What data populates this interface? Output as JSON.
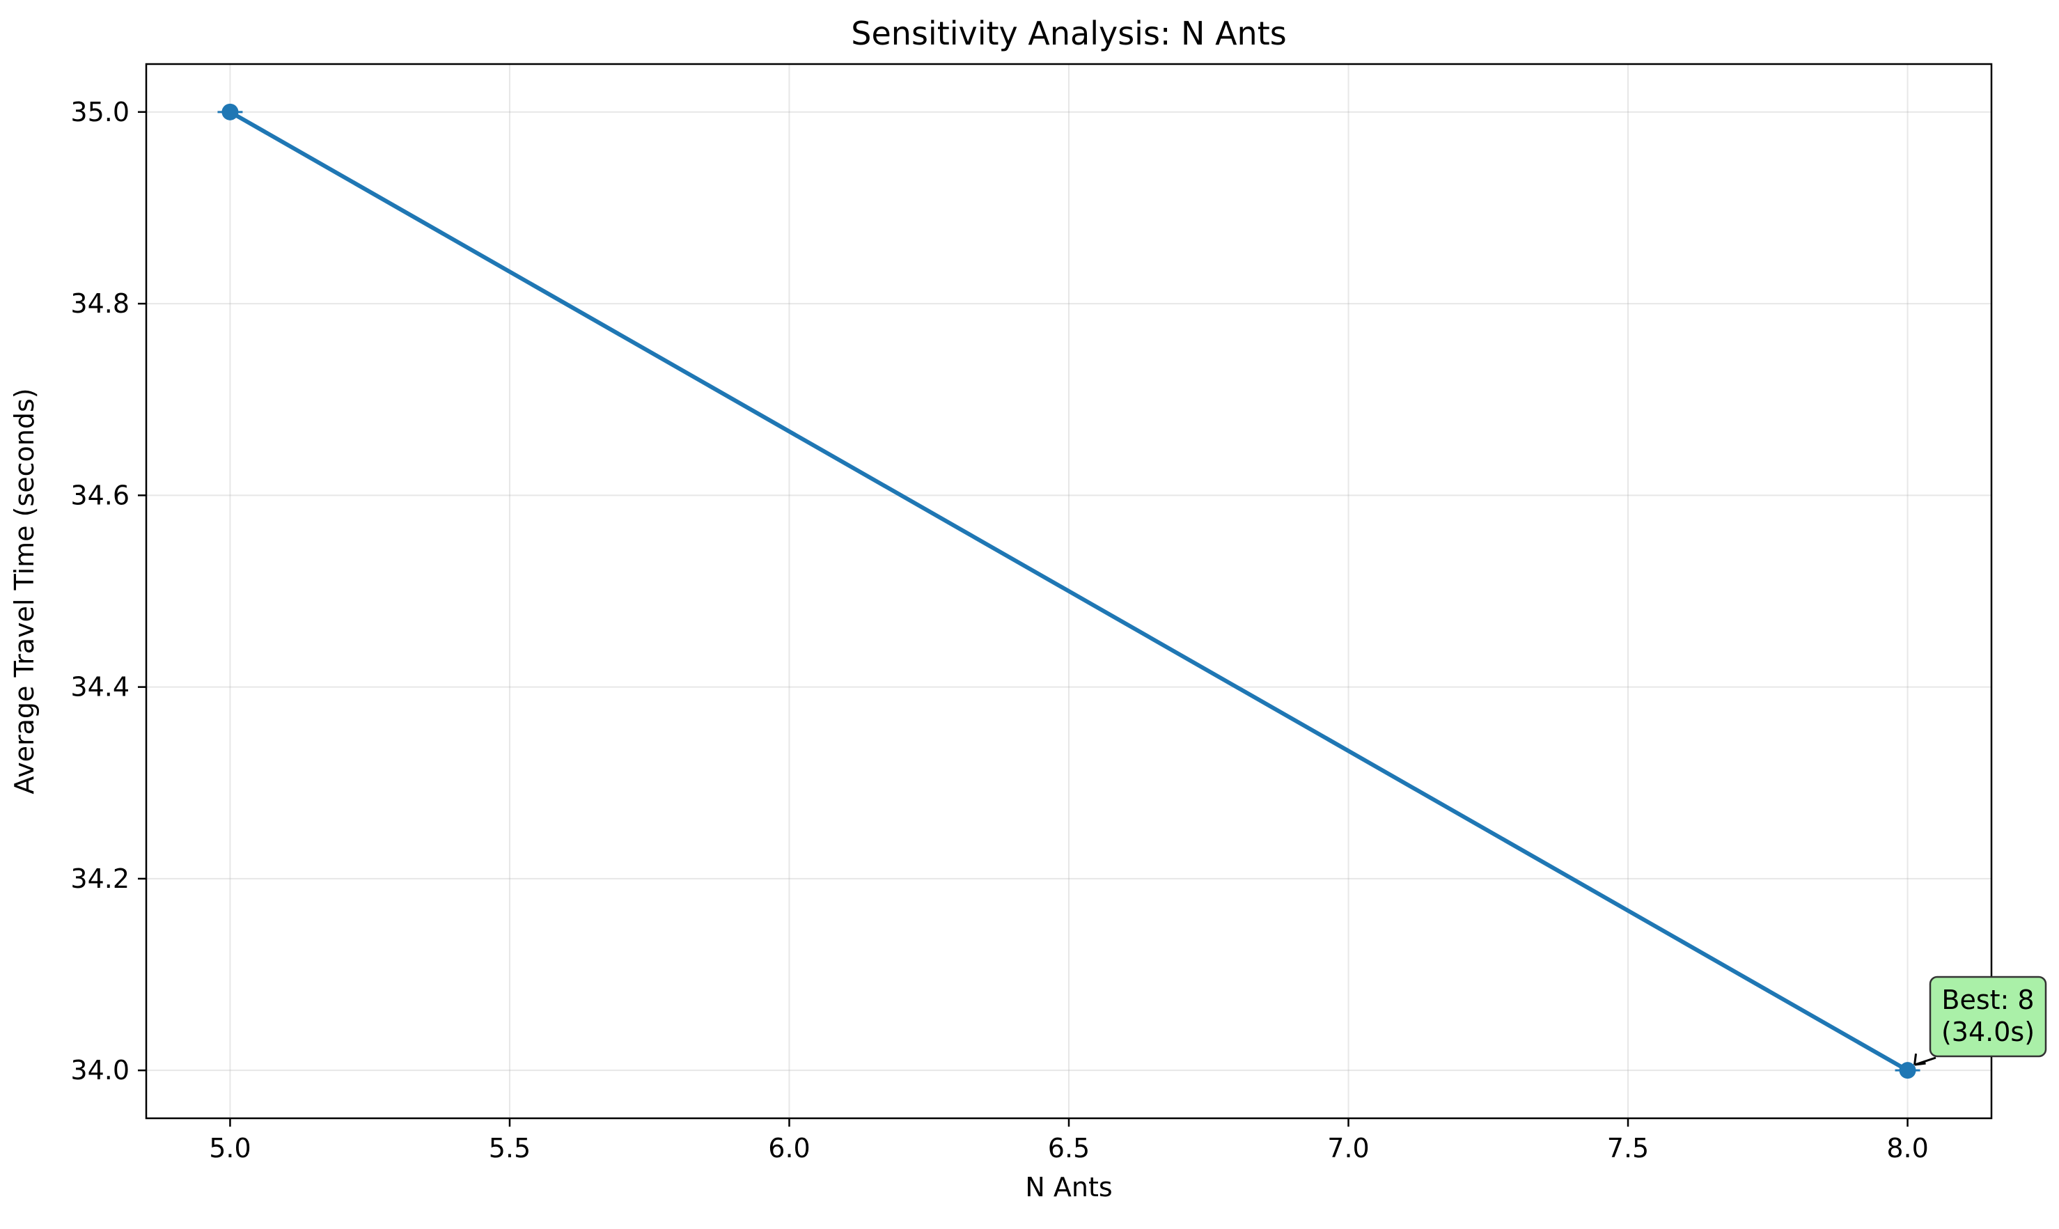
{
  "chart_data": {
    "type": "line",
    "title": "Sensitivity Analysis: N Ants",
    "xlabel": "N Ants",
    "ylabel": "Average Travel Time (seconds)",
    "xlim": [
      4.85,
      8.15
    ],
    "ylim": [
      33.95,
      35.05
    ],
    "xticks": [
      "5.0",
      "5.5",
      "6.0",
      "6.5",
      "7.0",
      "7.5",
      "8.0"
    ],
    "yticks": [
      "34.0",
      "34.2",
      "34.4",
      "34.6",
      "34.8",
      "35.0"
    ],
    "grid": true,
    "series": [
      {
        "x": [
          5,
          8
        ],
        "y": [
          35.0,
          34.0
        ],
        "error": [
          0,
          0
        ],
        "color": "#1f77b4"
      }
    ],
    "annotation": {
      "line1": "Best: 8",
      "line2": "(34.0s)",
      "x": 8,
      "y": 34.0,
      "box_color": "#aaf0a8",
      "border_color": "#333333"
    }
  }
}
